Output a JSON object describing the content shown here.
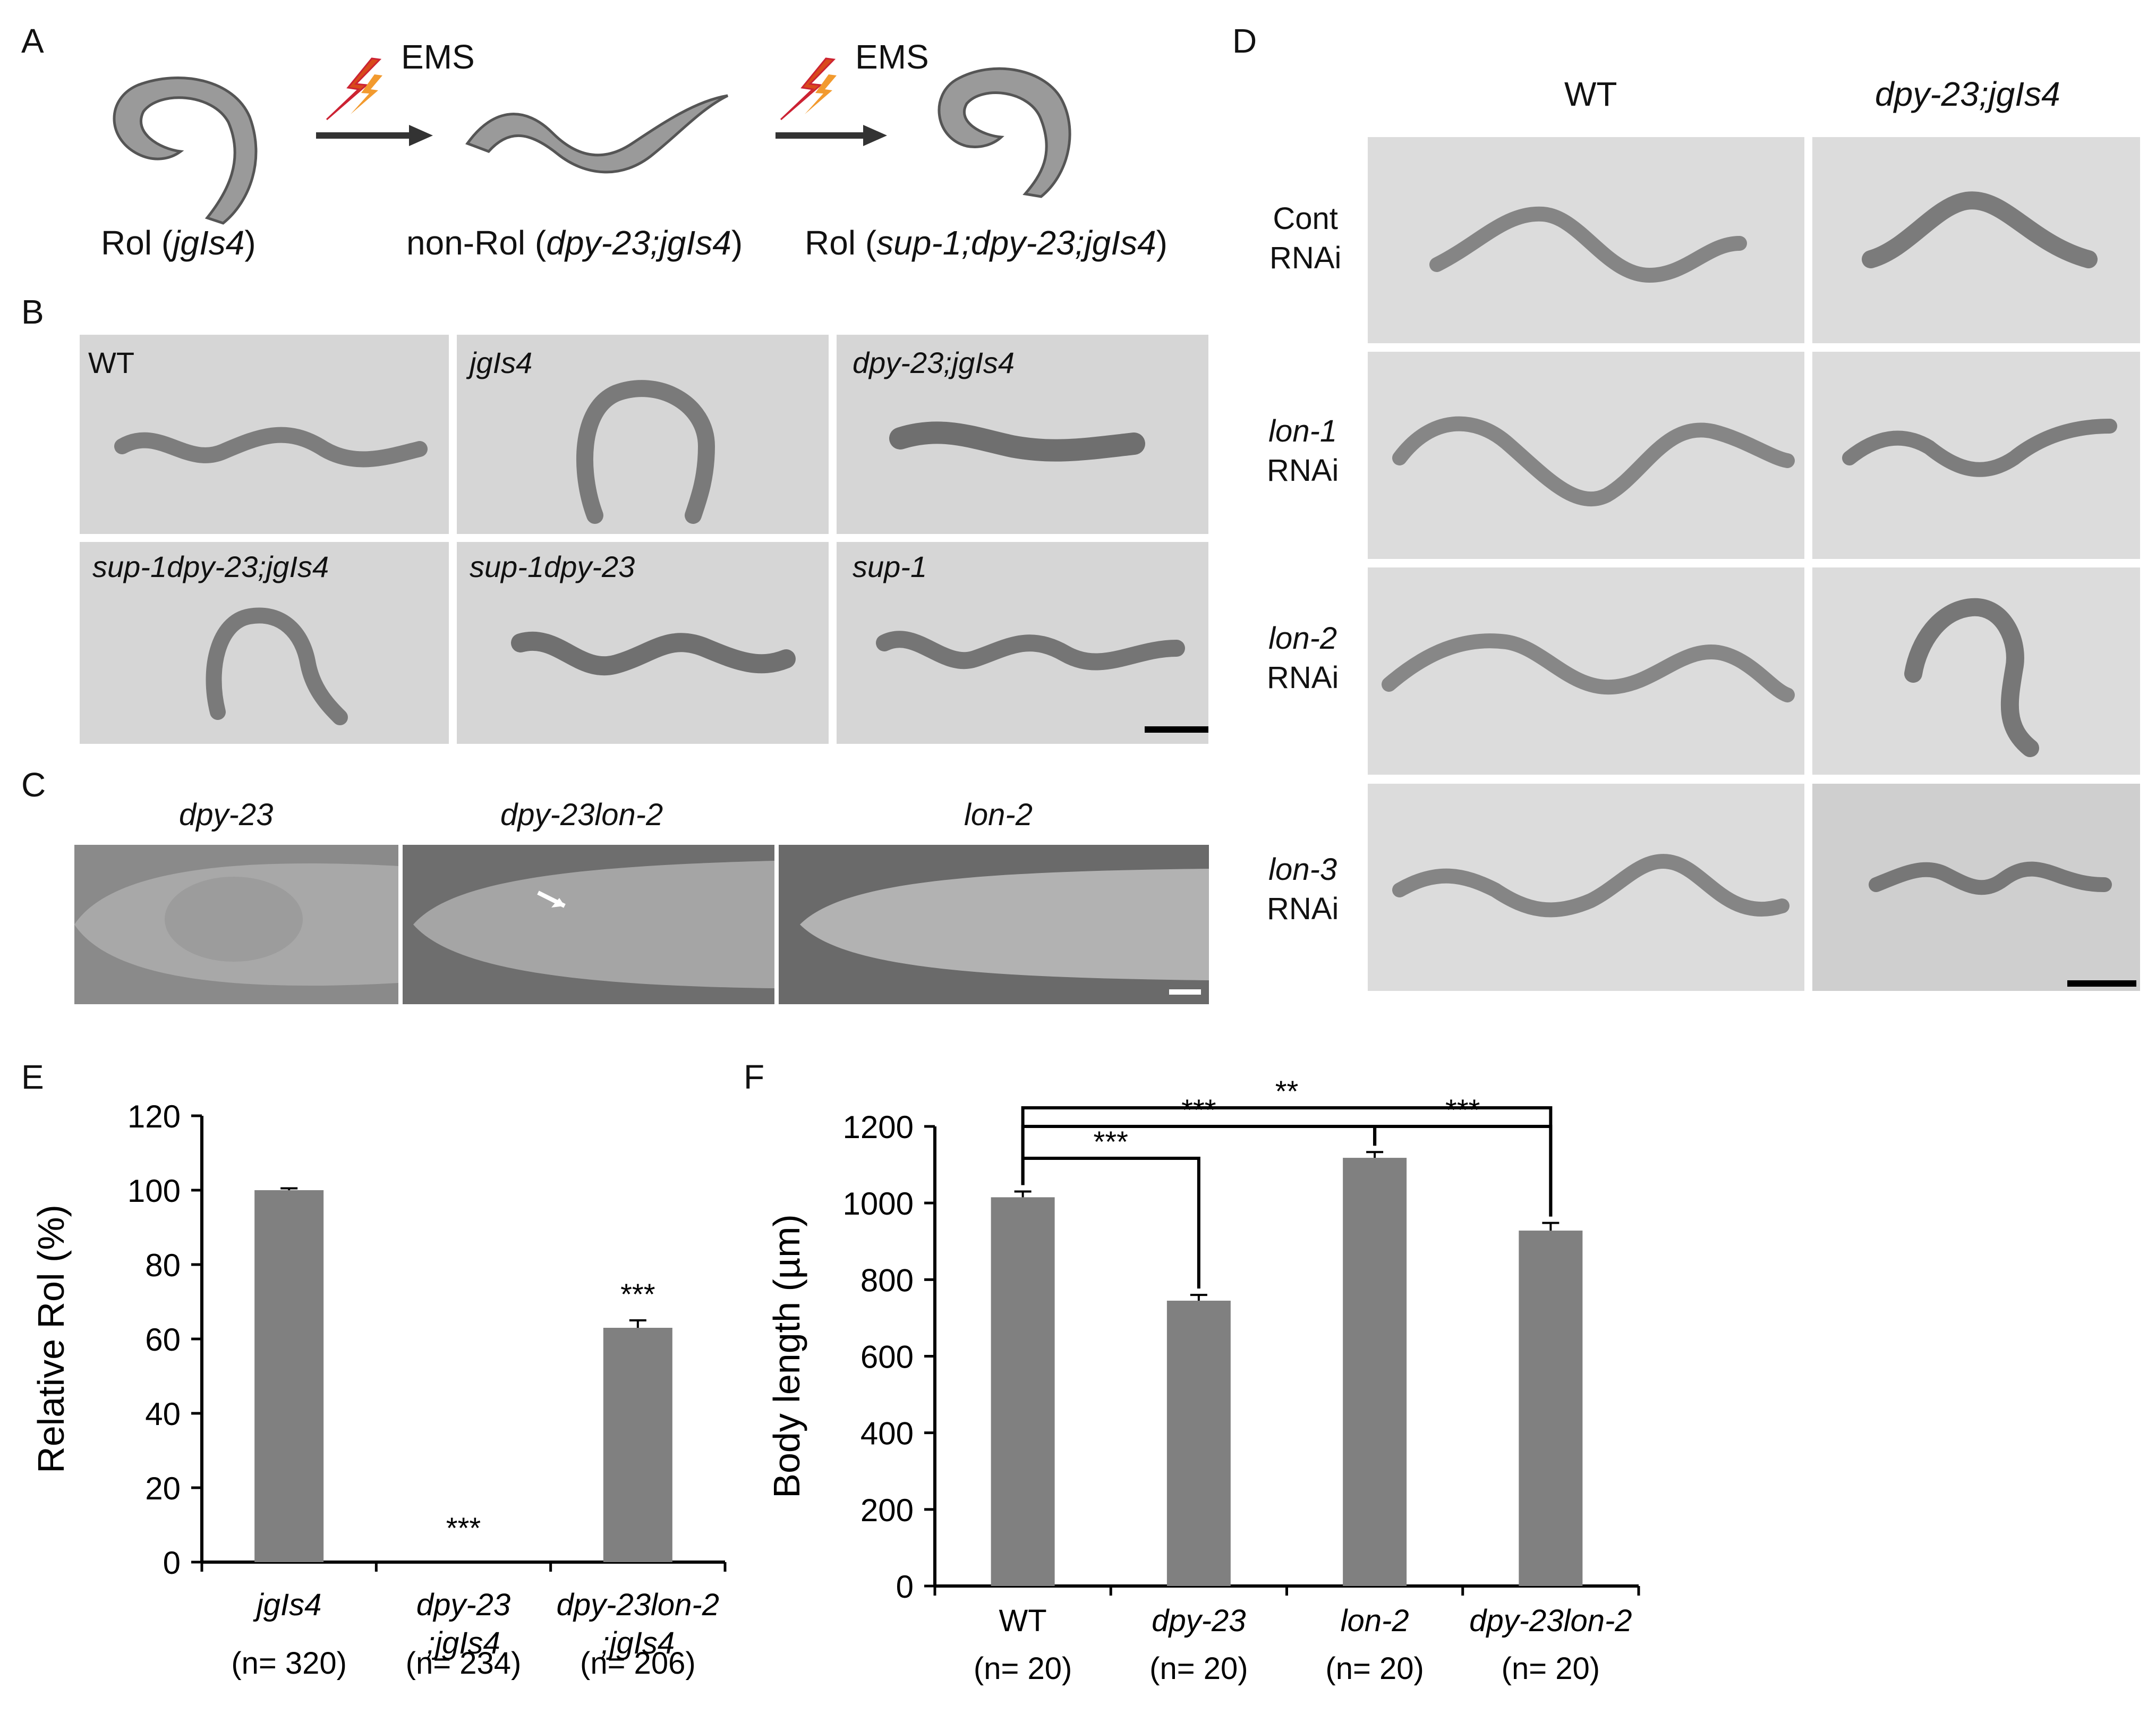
{
  "panels": {
    "A": {
      "letter": "A",
      "mutagen_1": "EMS",
      "mutagen_2": "EMS",
      "stage_1_prefix": "Rol (",
      "stage_1_genotype": "jgIs4",
      "stage_1_suffix": ")",
      "stage_2_prefix": "non-Rol (",
      "stage_2_genotype": "dpy-23;jgIs4",
      "stage_2_suffix": ")",
      "stage_3_prefix": "Rol (",
      "stage_3_genotype": "sup-1;dpy-23;jgIs4",
      "stage_3_suffix": ")"
    },
    "B": {
      "letter": "B",
      "tiles": [
        "WT",
        "jgIs4",
        "dpy-23;jgIs4",
        "sup-1dpy-23;jgIs4",
        "sup-1dpy-23",
        "sup-1"
      ]
    },
    "C": {
      "letter": "C",
      "tiles": [
        "dpy-23",
        "dpy-23lon-2",
        "lon-2"
      ]
    },
    "D": {
      "letter": "D",
      "col_wt": "WT",
      "col_mut": "dpy-23;jgIs4",
      "rows": [
        {
          "gene": "Cont",
          "suffix": "RNAi"
        },
        {
          "gene": "lon-1",
          "suffix": "RNAi"
        },
        {
          "gene": "lon-2",
          "suffix": "RNAi"
        },
        {
          "gene": "lon-3",
          "suffix": "RNAi"
        }
      ]
    },
    "E": {
      "letter": "E"
    },
    "F": {
      "letter": "F"
    }
  },
  "chart_data": [
    {
      "panel": "E",
      "type": "bar",
      "ylabel": "Relative Rol (%)",
      "ylim": [
        0,
        120
      ],
      "yticks": [
        0,
        20,
        40,
        60,
        80,
        100,
        120
      ],
      "categories": [
        {
          "line1": "jgIs4",
          "line2": "",
          "n": "(n= 320)"
        },
        {
          "line1": "dpy-23",
          "line2": ";jgIs4",
          "n": "(n= 234)"
        },
        {
          "line1": "dpy-23lon-2",
          "line2": ";jgIs4",
          "n": "(n= 206)"
        }
      ],
      "values": [
        100,
        0,
        63
      ],
      "errors": [
        0.5,
        0,
        2
      ],
      "significance": [
        "",
        "***",
        "***"
      ],
      "color": "#808080"
    },
    {
      "panel": "F",
      "type": "bar",
      "ylabel": "Body length (µm)",
      "ylim": [
        0,
        1200
      ],
      "yticks": [
        0,
        200,
        400,
        600,
        800,
        1000,
        1200
      ],
      "categories": [
        {
          "line1": "WT",
          "italic": false,
          "n": "(n= 20)"
        },
        {
          "line1": "dpy-23",
          "italic": true,
          "n": "(n= 20)"
        },
        {
          "line1": "lon-2",
          "italic": true,
          "n": "(n= 20)"
        },
        {
          "line1": "dpy-23lon-2",
          "italic": true,
          "n": "(n= 20)"
        }
      ],
      "values": [
        1015,
        745,
        1118,
        928
      ],
      "errors": [
        15,
        15,
        15,
        20
      ],
      "brackets": [
        {
          "from": 0,
          "to": 1,
          "label": "***"
        },
        {
          "from": 0,
          "to": 2,
          "label": "***"
        },
        {
          "from": 2,
          "to": 3,
          "label": "***"
        },
        {
          "from": 0,
          "to": 3,
          "label": "**"
        }
      ],
      "color": "#808080"
    }
  ]
}
